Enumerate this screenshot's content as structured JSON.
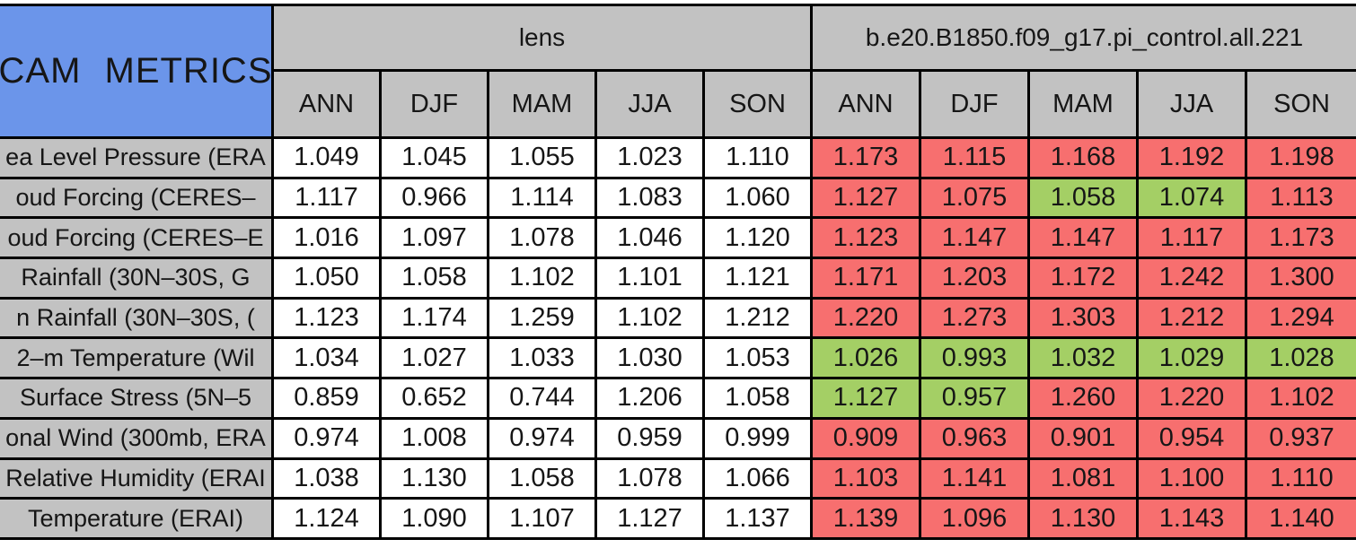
{
  "colors": {
    "title_blue": "#6B95EA",
    "header_gray": "#C2C2C2",
    "flag_red": "#F76F6F",
    "flag_green": "#A4CF65",
    "border_black": "#000000",
    "cell_white": "#FFFFFF"
  },
  "chart_data": {
    "type": "table",
    "title": "CAM METRICS",
    "column_groups": [
      "lens",
      "b.e20.B1850.f09_g17.pi_control.all.221"
    ],
    "seasons": [
      "ANN",
      "DJF",
      "MAM",
      "JJA",
      "SON"
    ],
    "rows": [
      {
        "label": "ea Level Pressure (ERA",
        "lens": [
          "1.049",
          "1.045",
          "1.055",
          "1.023",
          "1.110"
        ],
        "control": [
          "1.173",
          "1.115",
          "1.168",
          "1.192",
          "1.198"
        ],
        "control_flags": [
          "red",
          "red",
          "red",
          "red",
          "red"
        ]
      },
      {
        "label": "oud Forcing (CERES–",
        "lens": [
          "1.117",
          "0.966",
          "1.114",
          "1.083",
          "1.060"
        ],
        "control": [
          "1.127",
          "1.075",
          "1.058",
          "1.074",
          "1.113"
        ],
        "control_flags": [
          "red",
          "red",
          "green",
          "green",
          "red"
        ]
      },
      {
        "label": "oud Forcing (CERES–E",
        "lens": [
          "1.016",
          "1.097",
          "1.078",
          "1.046",
          "1.120"
        ],
        "control": [
          "1.123",
          "1.147",
          "1.147",
          "1.117",
          "1.173"
        ],
        "control_flags": [
          "red",
          "red",
          "red",
          "red",
          "red"
        ]
      },
      {
        "label": "Rainfall (30N–30S, G",
        "lens": [
          "1.050",
          "1.058",
          "1.102",
          "1.101",
          "1.121"
        ],
        "control": [
          "1.171",
          "1.203",
          "1.172",
          "1.242",
          "1.300"
        ],
        "control_flags": [
          "red",
          "red",
          "red",
          "red",
          "red"
        ]
      },
      {
        "label": "n Rainfall (30N–30S, (",
        "lens": [
          "1.123",
          "1.174",
          "1.259",
          "1.102",
          "1.212"
        ],
        "control": [
          "1.220",
          "1.273",
          "1.303",
          "1.212",
          "1.294"
        ],
        "control_flags": [
          "red",
          "red",
          "red",
          "red",
          "red"
        ]
      },
      {
        "label": "2–m Temperature (Wil",
        "lens": [
          "1.034",
          "1.027",
          "1.033",
          "1.030",
          "1.053"
        ],
        "control": [
          "1.026",
          "0.993",
          "1.032",
          "1.029",
          "1.028"
        ],
        "control_flags": [
          "green",
          "green",
          "green",
          "green",
          "green"
        ]
      },
      {
        "label": "Surface Stress (5N–5",
        "lens": [
          "0.859",
          "0.652",
          "0.744",
          "1.206",
          "1.058"
        ],
        "control": [
          "1.127",
          "0.957",
          "1.260",
          "1.220",
          "1.102"
        ],
        "control_flags": [
          "green",
          "green",
          "red",
          "red",
          "red"
        ]
      },
      {
        "label": "onal Wind (300mb, ERA",
        "lens": [
          "0.974",
          "1.008",
          "0.974",
          "0.959",
          "0.999"
        ],
        "control": [
          "0.909",
          "0.963",
          "0.901",
          "0.954",
          "0.937"
        ],
        "control_flags": [
          "red",
          "red",
          "red",
          "red",
          "red"
        ]
      },
      {
        "label": "Relative Humidity (ERAI",
        "lens": [
          "1.038",
          "1.130",
          "1.058",
          "1.078",
          "1.066"
        ],
        "control": [
          "1.103",
          "1.141",
          "1.081",
          "1.100",
          "1.110"
        ],
        "control_flags": [
          "red",
          "red",
          "red",
          "red",
          "red"
        ]
      },
      {
        "label": "Temperature (ERAI)",
        "lens": [
          "1.124",
          "1.090",
          "1.107",
          "1.127",
          "1.137"
        ],
        "control": [
          "1.139",
          "1.096",
          "1.130",
          "1.143",
          "1.140"
        ],
        "control_flags": [
          "red",
          "red",
          "red",
          "red",
          "red"
        ]
      }
    ]
  }
}
